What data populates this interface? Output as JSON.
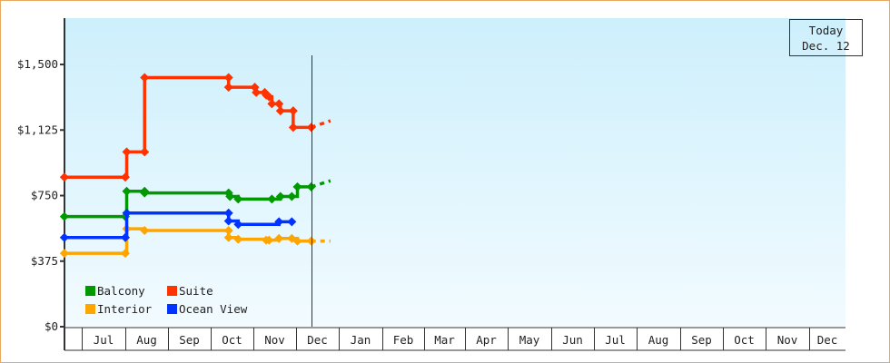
{
  "chart_data": {
    "type": "line",
    "step": true,
    "title": "",
    "xlabel": "",
    "ylabel": "",
    "ylim": [
      0,
      1765
    ],
    "xlim": [
      "Jun 19",
      "Dec 26"
    ],
    "y_ticks": [
      0,
      375,
      750,
      1125,
      1500
    ],
    "y_tick_labels": [
      "$0",
      "$375",
      "$750",
      "$1,125",
      "$1,500"
    ],
    "x_tick_labels": [
      "Jul",
      "Aug",
      "Sep",
      "Oct",
      "Nov",
      "Dec",
      "Jan",
      "Feb",
      "Mar",
      "Apr",
      "May",
      "Jun",
      "Jul",
      "Aug",
      "Sep",
      "Oct",
      "Nov",
      "Dec"
    ],
    "grid": false,
    "background": [
      "#cdeffc",
      "#f2fbff"
    ],
    "legend_position": "bottom-left",
    "today": {
      "line1": "Today",
      "line2": "Dec. 12",
      "date": "Dec 12"
    },
    "series": [
      {
        "name": "Balcony",
        "color": "#009900",
        "points": [
          [
            "Jun 19",
            630
          ],
          [
            "Aug 1",
            630
          ],
          [
            "Aug 2",
            775
          ],
          [
            "Aug 15",
            775
          ],
          [
            "Aug 15",
            765
          ],
          [
            "Oct 14",
            765
          ],
          [
            "Oct 15",
            745
          ],
          [
            "Oct 21",
            730
          ],
          [
            "Nov 14",
            730
          ],
          [
            "Nov 20",
            745
          ],
          [
            "Nov 28",
            745
          ],
          [
            "Dec 2",
            800
          ],
          [
            "Dec 12",
            800
          ]
        ],
        "projection": [
          [
            "Dec 12",
            800
          ],
          [
            "Dec 26",
            835
          ]
        ]
      },
      {
        "name": "Suite",
        "color": "#ff3300",
        "points": [
          [
            "Jun 19",
            855
          ],
          [
            "Aug 1",
            855
          ],
          [
            "Aug 2",
            1000
          ],
          [
            "Aug 15",
            1000
          ],
          [
            "Aug 15",
            1425
          ],
          [
            "Oct 14",
            1425
          ],
          [
            "Oct 14",
            1370
          ],
          [
            "Nov 2",
            1370
          ],
          [
            "Nov 3",
            1340
          ],
          [
            "Nov 9",
            1340
          ],
          [
            "Nov 10",
            1325
          ],
          [
            "Nov 12",
            1315
          ],
          [
            "Nov 14",
            1275
          ],
          [
            "Nov 19",
            1275
          ],
          [
            "Nov 20",
            1235
          ],
          [
            "Nov 29",
            1235
          ],
          [
            "Nov 29",
            1140
          ],
          [
            "Dec 12",
            1140
          ]
        ],
        "projection": [
          [
            "Dec 12",
            1140
          ],
          [
            "Dec 26",
            1178
          ]
        ]
      },
      {
        "name": "Interior",
        "color": "#ffa500",
        "points": [
          [
            "Jun 19",
            420
          ],
          [
            "Aug 1",
            420
          ],
          [
            "Aug 2",
            560
          ],
          [
            "Aug 15",
            550
          ],
          [
            "Oct 14",
            550
          ],
          [
            "Oct 14",
            510
          ],
          [
            "Oct 21",
            500
          ],
          [
            "Nov 10",
            495
          ],
          [
            "Nov 12",
            495
          ],
          [
            "Nov 19",
            505
          ],
          [
            "Nov 28",
            505
          ],
          [
            "Dec 2",
            490
          ],
          [
            "Dec 12",
            490
          ]
        ],
        "projection": [
          [
            "Dec 12",
            490
          ],
          [
            "Dec 26",
            490
          ]
        ]
      },
      {
        "name": "Ocean View",
        "color": "#0033ff",
        "points": [
          [
            "Jun 19",
            510
          ],
          [
            "Aug 1",
            510
          ],
          [
            "Aug 2",
            650
          ],
          [
            "Oct 14",
            650
          ],
          [
            "Oct 14",
            605
          ],
          [
            "Oct 21",
            585
          ],
          [
            "Nov 19",
            600
          ],
          [
            "Nov 28",
            600
          ]
        ],
        "projection": []
      }
    ]
  }
}
